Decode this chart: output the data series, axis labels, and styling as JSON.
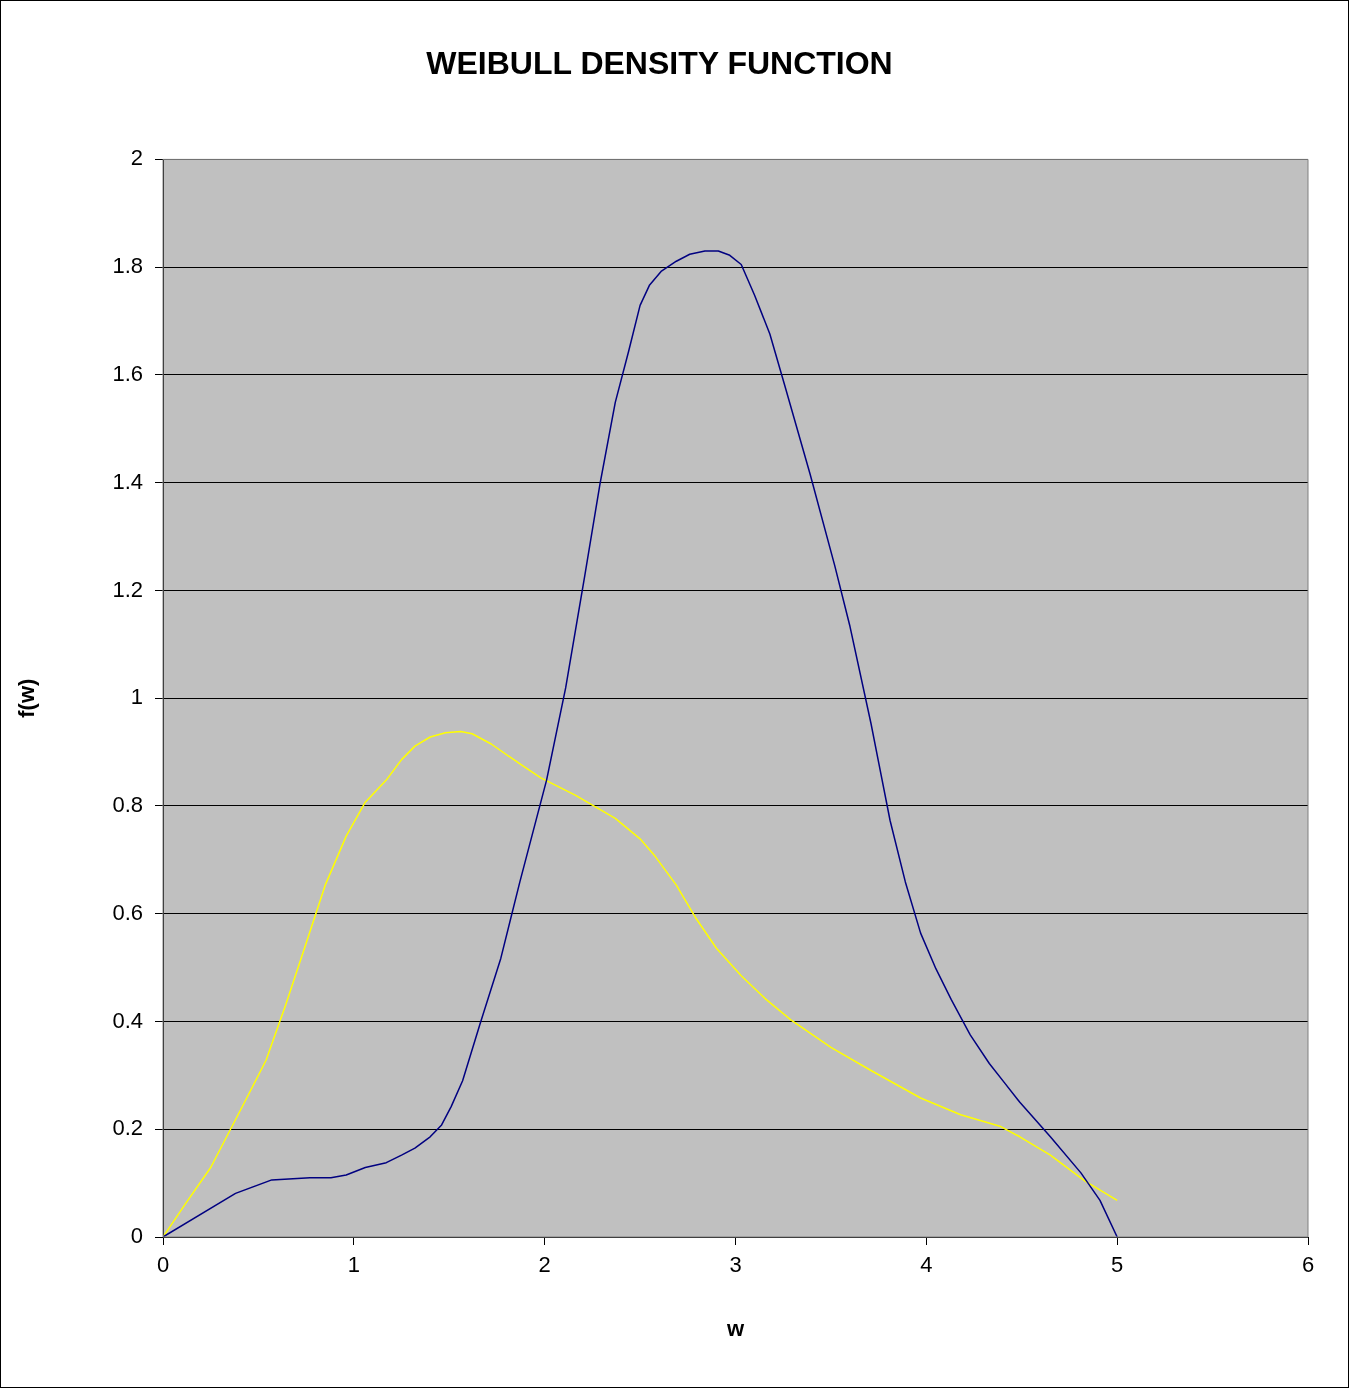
{
  "chart_data": {
    "type": "line",
    "title": "WEIBULL DENSITY FUNCTION",
    "xlabel": "w",
    "ylabel": "f(w)",
    "xlim": [
      0,
      6
    ],
    "xticks": [
      0,
      1,
      2,
      3,
      4,
      5,
      6
    ],
    "ylim": [
      0,
      2
    ],
    "yticks": [
      0,
      0.2,
      0.4,
      0.6,
      0.8,
      1,
      1.2,
      1.4,
      1.6,
      1.8,
      2
    ],
    "grid": "y",
    "series": [
      {
        "color": "#000080",
        "x": [
          0,
          0.38,
          0.57,
          0.77,
          0.88,
          0.96,
          1.06,
          1.17,
          1.25,
          1.32,
          1.4,
          1.46,
          1.51,
          1.57,
          1.66,
          1.77,
          1.87,
          2.01,
          2.11,
          2.21,
          2.29,
          2.37,
          2.44,
          2.5,
          2.55,
          2.61,
          2.69,
          2.76,
          2.84,
          2.91,
          2.97,
          3.03,
          3.1,
          3.18,
          3.26,
          3.39,
          3.52,
          3.6,
          3.71,
          3.81,
          3.89,
          3.97,
          4.05,
          4.13,
          4.23,
          4.33,
          4.41,
          4.49,
          4.65,
          4.81,
          4.91,
          5
        ],
        "values": [
          0,
          0.081,
          0.106,
          0.11,
          0.11,
          0.115,
          0.129,
          0.138,
          0.152,
          0.165,
          0.186,
          0.208,
          0.242,
          0.29,
          0.394,
          0.517,
          0.659,
          0.848,
          1.019,
          1.227,
          1.398,
          1.549,
          1.644,
          1.729,
          1.767,
          1.792,
          1.811,
          1.824,
          1.83,
          1.83,
          1.822,
          1.805,
          1.748,
          1.676,
          1.578,
          1.417,
          1.246,
          1.133,
          0.953,
          0.773,
          0.659,
          0.564,
          0.498,
          0.441,
          0.375,
          0.322,
          0.286,
          0.25,
          0.186,
          0.119,
          0.068,
          0
        ]
      },
      {
        "color": "#ffff00",
        "x": [
          0,
          0.12,
          0.25,
          0.43,
          0.54,
          0.64,
          0.75,
          0.85,
          0.96,
          1.06,
          1.17,
          1.25,
          1.32,
          1.4,
          1.48,
          1.56,
          1.62,
          1.72,
          1.85,
          1.98,
          2.16,
          2.37,
          2.5,
          2.58,
          2.69,
          2.79,
          2.9,
          3.03,
          3.16,
          3.29,
          3.5,
          3.71,
          3.97,
          4.18,
          4.39,
          4.49,
          4.65,
          4.83,
          5
        ],
        "values": [
          0,
          0.063,
          0.129,
          0.252,
          0.328,
          0.428,
          0.545,
          0.653,
          0.744,
          0.807,
          0.848,
          0.886,
          0.911,
          0.928,
          0.936,
          0.938,
          0.934,
          0.915,
          0.883,
          0.852,
          0.82,
          0.777,
          0.739,
          0.706,
          0.653,
          0.593,
          0.536,
          0.485,
          0.441,
          0.403,
          0.352,
          0.309,
          0.258,
          0.227,
          0.205,
          0.186,
          0.152,
          0.104,
          0.068
        ]
      }
    ]
  }
}
